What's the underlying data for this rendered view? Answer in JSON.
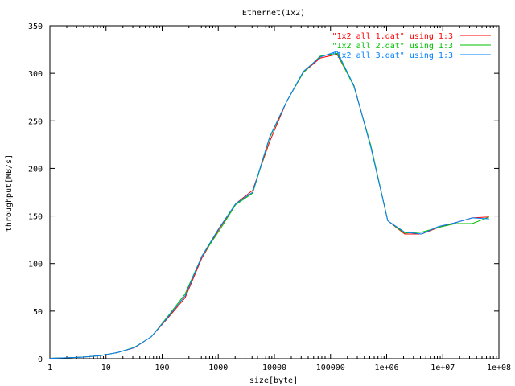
{
  "chart_data": {
    "type": "line",
    "title": "Ethernet(1x2)",
    "xlabel": "size[byte]",
    "ylabel": "throughput[MB/s]",
    "x_scale": "log",
    "xlim": [
      1,
      100000000
    ],
    "ylim": [
      0,
      350
    ],
    "grid": false,
    "legend_position": "top-right",
    "x_ticks": [
      {
        "value": 1,
        "label": "1"
      },
      {
        "value": 10,
        "label": "10"
      },
      {
        "value": 100,
        "label": "100"
      },
      {
        "value": 1000,
        "label": "1000"
      },
      {
        "value": 10000,
        "label": "10000"
      },
      {
        "value": 100000,
        "label": "100000"
      },
      {
        "value": 1000000,
        "label": "1e+06"
      },
      {
        "value": 10000000,
        "label": "1e+07"
      },
      {
        "value": 100000000,
        "label": "1e+08"
      }
    ],
    "y_ticks": [
      {
        "value": 0,
        "label": "0"
      },
      {
        "value": 50,
        "label": "50"
      },
      {
        "value": 100,
        "label": "100"
      },
      {
        "value": 150,
        "label": "150"
      },
      {
        "value": 200,
        "label": "200"
      },
      {
        "value": 250,
        "label": "250"
      },
      {
        "value": 300,
        "label": "300"
      },
      {
        "value": 350,
        "label": "350"
      }
    ],
    "x": [
      1,
      2,
      4,
      8,
      16,
      32,
      64,
      128,
      256,
      512,
      1024,
      2048,
      4096,
      8192,
      16384,
      32768,
      65536,
      131072,
      262144,
      524288,
      1048576,
      2097152,
      4194304,
      8388608,
      16777216,
      33554432,
      67108864
    ],
    "series": [
      {
        "name": "\"1x2 all 1.dat\" using 1:3",
        "color": "#ff0000",
        "values": [
          0.4,
          0.9,
          1.7,
          3.3,
          6.4,
          11.5,
          23,
          43,
          64,
          106,
          136,
          163,
          177,
          228,
          270,
          301,
          316,
          320,
          287,
          223,
          145,
          131,
          131,
          138,
          143,
          148,
          149
        ]
      },
      {
        "name": "\"1x2 all 2.dat\" using 1:3",
        "color": "#00c000",
        "values": [
          0.4,
          0.9,
          1.7,
          3.3,
          6.4,
          12,
          23,
          45,
          68,
          108,
          134,
          162,
          174,
          232,
          270,
          301,
          318,
          321,
          286,
          224,
          145,
          132,
          133,
          138,
          142,
          142,
          149
        ]
      },
      {
        "name": "\"1x2 all 3.dat\" using 1:3",
        "color": "#0080ff",
        "values": [
          0.4,
          0.9,
          1.7,
          3.3,
          6.4,
          11.7,
          23,
          44,
          66,
          108,
          137,
          163,
          175,
          233,
          270,
          302,
          317,
          323,
          287,
          222,
          145,
          133,
          131,
          139,
          143,
          148,
          147
        ]
      }
    ]
  }
}
